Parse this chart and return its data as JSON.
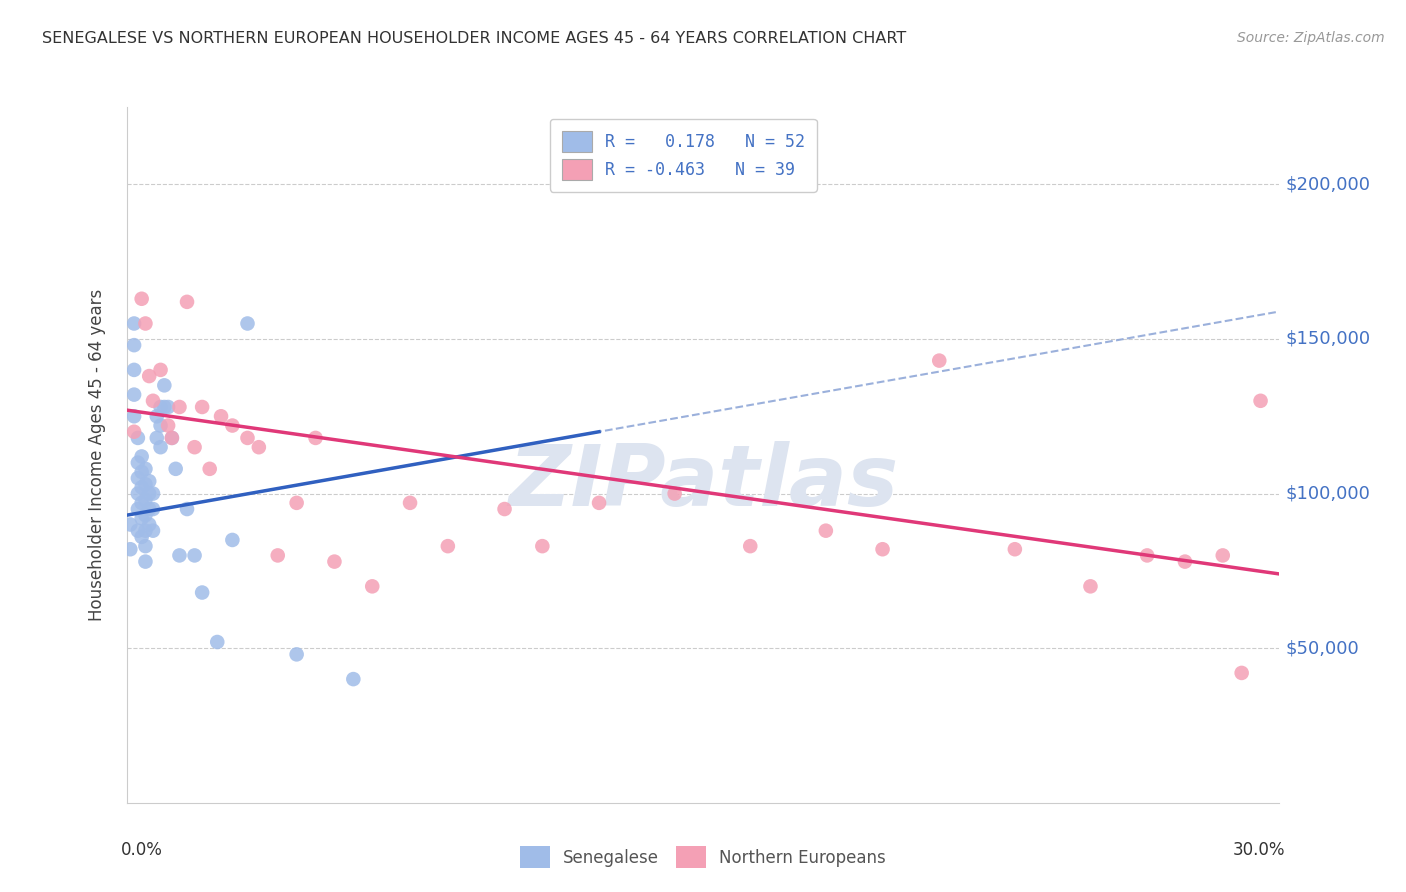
{
  "title": "SENEGALESE VS NORTHERN EUROPEAN HOUSEHOLDER INCOME AGES 45 - 64 YEARS CORRELATION CHART",
  "source": "Source: ZipAtlas.com",
  "ylabel": "Householder Income Ages 45 - 64 years",
  "yticks": [
    50000,
    100000,
    150000,
    200000
  ],
  "ytick_labels": [
    "$50,000",
    "$100,000",
    "$150,000",
    "$200,000"
  ],
  "xlim": [
    0.0,
    0.305
  ],
  "ylim": [
    0,
    225000
  ],
  "r_senegalese": 0.178,
  "n_senegalese": 52,
  "r_northern": -0.463,
  "n_northern": 39,
  "color_senegalese": "#a0bce8",
  "color_northern": "#f4a0b5",
  "trendline_senegalese": "#3060c0",
  "trendline_northern": "#e03878",
  "trendline_dashed_color": "#90a8d8",
  "legend_text_color": "#4472c4",
  "ytick_color": "#4472c4",
  "background": "#ffffff",
  "watermark": "ZIPatlas",
  "watermark_color": "#dde4f0",
  "grid_color": "#cccccc",
  "senegalese_x": [
    0.001,
    0.001,
    0.002,
    0.002,
    0.002,
    0.002,
    0.002,
    0.003,
    0.003,
    0.003,
    0.003,
    0.003,
    0.003,
    0.004,
    0.004,
    0.004,
    0.004,
    0.004,
    0.004,
    0.005,
    0.005,
    0.005,
    0.005,
    0.005,
    0.005,
    0.005,
    0.006,
    0.006,
    0.006,
    0.006,
    0.007,
    0.007,
    0.007,
    0.008,
    0.008,
    0.009,
    0.009,
    0.009,
    0.01,
    0.01,
    0.011,
    0.012,
    0.013,
    0.014,
    0.016,
    0.018,
    0.02,
    0.024,
    0.028,
    0.032,
    0.045,
    0.06
  ],
  "senegalese_y": [
    90000,
    82000,
    155000,
    148000,
    140000,
    132000,
    125000,
    118000,
    110000,
    105000,
    100000,
    95000,
    88000,
    112000,
    107000,
    102000,
    97000,
    92000,
    86000,
    108000,
    103000,
    98000,
    93000,
    88000,
    83000,
    78000,
    104000,
    100000,
    95000,
    90000,
    100000,
    95000,
    88000,
    125000,
    118000,
    128000,
    122000,
    115000,
    135000,
    128000,
    128000,
    118000,
    108000,
    80000,
    95000,
    80000,
    68000,
    52000,
    85000,
    155000,
    48000,
    40000
  ],
  "northern_x": [
    0.002,
    0.004,
    0.005,
    0.006,
    0.007,
    0.009,
    0.011,
    0.012,
    0.014,
    0.016,
    0.018,
    0.02,
    0.022,
    0.025,
    0.028,
    0.032,
    0.035,
    0.04,
    0.045,
    0.05,
    0.055,
    0.065,
    0.075,
    0.085,
    0.1,
    0.11,
    0.125,
    0.145,
    0.165,
    0.185,
    0.2,
    0.215,
    0.235,
    0.255,
    0.27,
    0.28,
    0.29,
    0.295,
    0.3
  ],
  "northern_y": [
    120000,
    163000,
    155000,
    138000,
    130000,
    140000,
    122000,
    118000,
    128000,
    162000,
    115000,
    128000,
    108000,
    125000,
    122000,
    118000,
    115000,
    80000,
    97000,
    118000,
    78000,
    70000,
    97000,
    83000,
    95000,
    83000,
    97000,
    100000,
    83000,
    88000,
    82000,
    143000,
    82000,
    70000,
    80000,
    78000,
    80000,
    42000,
    130000
  ],
  "sen_trendline_x0": 0.0,
  "sen_trendline_y0": 93000,
  "sen_trendline_x1": 0.125,
  "sen_trendline_y1": 120000,
  "nor_trendline_x0": 0.0,
  "nor_trendline_y0": 127000,
  "nor_trendline_x1": 0.305,
  "nor_trendline_y1": 74000
}
